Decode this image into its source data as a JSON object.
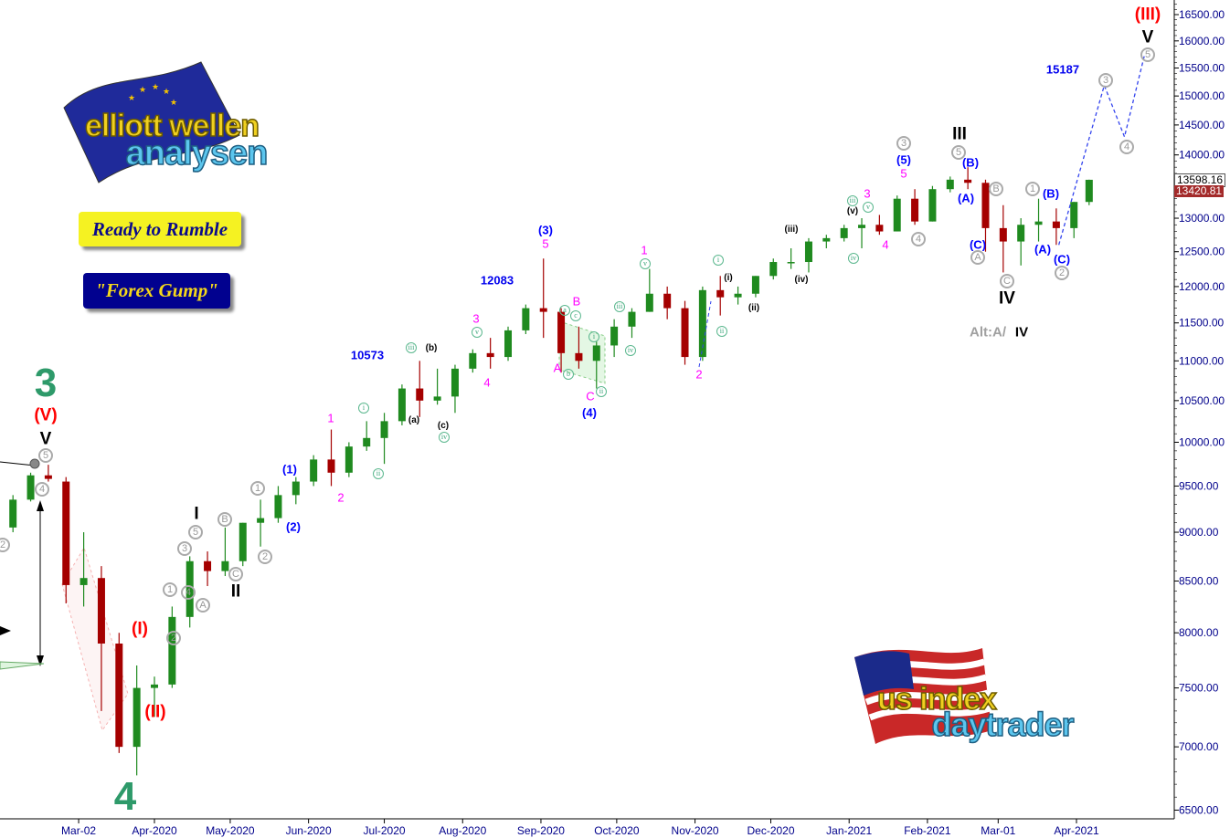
{
  "colors": {
    "up": "#1f8a1f",
    "down": "#a50000",
    "projection": "#3344ee",
    "axis": "#000000",
    "tick_text": "#00008b"
  },
  "buttons": {
    "ready_to_rumble": "Ready to Rumble",
    "forex_gump": "\"Forex Gump\""
  },
  "logos": {
    "top_left": {
      "line1": "elliott wellen",
      "line2": "analysen",
      "icon": "eu-flag-icon"
    },
    "bottom_right": {
      "line1": "us index",
      "line2": "daytrader",
      "icon": "us-flag-icon"
    }
  },
  "price_tags": {
    "last": "13598.16",
    "previous": "13420.81"
  },
  "chart_data": {
    "type": "candlestick",
    "y_scale": "log",
    "ylim": [
      6450,
      16700
    ],
    "grid": false,
    "y_ticks": [
      "16500.00",
      "16000.00",
      "15500.00",
      "15000.00",
      "14500.00",
      "14000.00",
      "13000.00",
      "12500.00",
      "12000.00",
      "11500.00",
      "11000.00",
      "10500.00",
      "10000.00",
      "9500.00",
      "9000.00",
      "8500.00",
      "8000.00",
      "7500.00",
      "7000.00",
      "6500.00"
    ],
    "x_ticks": [
      {
        "label": "Mar-02",
        "date": "2020-03-02"
      },
      {
        "label": "Apr-2020",
        "date": "2020-04-01"
      },
      {
        "label": "May-2020",
        "date": "2020-05-01"
      },
      {
        "label": "Jun-2020",
        "date": "2020-06-01"
      },
      {
        "label": "Jul-2020",
        "date": "2020-07-01"
      },
      {
        "label": "Aug-2020",
        "date": "2020-08-01"
      },
      {
        "label": "Sep-2020",
        "date": "2020-09-01"
      },
      {
        "label": "Oct-2020",
        "date": "2020-10-01"
      },
      {
        "label": "Nov-2020",
        "date": "2020-11-01"
      },
      {
        "label": "Dec-2020",
        "date": "2020-12-01"
      },
      {
        "label": "Jan-2021",
        "date": "2021-01-01"
      },
      {
        "label": "Feb-2021",
        "date": "2021-02-01"
      },
      {
        "label": "Mar-01",
        "date": "2021-03-01"
      },
      {
        "label": "Apr-2021",
        "date": "2021-04-01"
      }
    ],
    "ohlc_columns": [
      "date",
      "open",
      "high",
      "low",
      "close"
    ],
    "ohlc": [
      [
        "2020-02-05",
        9050,
        9400,
        9000,
        9350
      ],
      [
        "2020-02-12",
        9350,
        9650,
        9330,
        9620
      ],
      [
        "2020-02-19",
        9620,
        9740,
        9550,
        9580
      ],
      [
        "2020-02-26",
        9550,
        9600,
        8280,
        8460
      ],
      [
        "2020-03-04",
        8460,
        9000,
        8250,
        8530
      ],
      [
        "2020-03-11",
        8530,
        8650,
        7300,
        7900
      ],
      [
        "2020-03-18",
        7900,
        8000,
        6950,
        7000
      ],
      [
        "2020-03-25",
        7000,
        7700,
        6770,
        7500
      ],
      [
        "2020-04-01",
        7500,
        7600,
        7250,
        7530
      ],
      [
        "2020-04-08",
        7530,
        8250,
        7500,
        8150
      ],
      [
        "2020-04-15",
        8150,
        8750,
        8050,
        8700
      ],
      [
        "2020-04-22",
        8700,
        8800,
        8450,
        8600
      ],
      [
        "2020-04-29",
        8600,
        9050,
        8550,
        8700
      ],
      [
        "2020-05-06",
        8700,
        9100,
        8650,
        9100
      ],
      [
        "2020-05-13",
        9100,
        9350,
        8850,
        9150
      ],
      [
        "2020-05-20",
        9150,
        9500,
        9100,
        9400
      ],
      [
        "2020-05-27",
        9400,
        9600,
        9300,
        9550
      ],
      [
        "2020-06-03",
        9550,
        9850,
        9500,
        9800
      ],
      [
        "2020-06-10",
        9800,
        10150,
        9500,
        9650
      ],
      [
        "2020-06-17",
        9650,
        10000,
        9600,
        9950
      ],
      [
        "2020-06-24",
        9950,
        10250,
        9900,
        10050
      ],
      [
        "2020-07-01",
        10050,
        10350,
        9750,
        10250
      ],
      [
        "2020-07-08",
        10250,
        10700,
        10200,
        10650
      ],
      [
        "2020-07-15",
        10650,
        11000,
        10300,
        10500
      ],
      [
        "2020-07-22",
        10500,
        10900,
        10450,
        10550
      ],
      [
        "2020-07-29",
        10550,
        10950,
        10350,
        10900
      ],
      [
        "2020-08-05",
        10900,
        11150,
        10850,
        11100
      ],
      [
        "2020-08-12",
        11100,
        11300,
        10900,
        11050
      ],
      [
        "2020-08-19",
        11050,
        11450,
        11000,
        11400
      ],
      [
        "2020-08-26",
        11400,
        11750,
        11350,
        11700
      ],
      [
        "2020-09-02",
        11700,
        12400,
        11300,
        11650
      ],
      [
        "2020-09-09",
        11650,
        11700,
        10850,
        11100
      ],
      [
        "2020-09-16",
        11100,
        11450,
        10900,
        11000
      ],
      [
        "2020-09-23",
        11000,
        11250,
        10650,
        11200
      ],
      [
        "2020-09-30",
        11200,
        11550,
        11050,
        11450
      ],
      [
        "2020-10-07",
        11450,
        11700,
        11300,
        11650
      ],
      [
        "2020-10-14",
        11650,
        12250,
        11650,
        11900
      ],
      [
        "2020-10-21",
        11900,
        12000,
        11550,
        11700
      ],
      [
        "2020-10-28",
        11700,
        11800,
        10950,
        11050
      ],
      [
        "2020-11-04",
        11050,
        12000,
        11000,
        11950
      ],
      [
        "2020-11-11",
        11950,
        12150,
        11600,
        11850
      ],
      [
        "2020-11-18",
        11850,
        12000,
        11750,
        11900
      ],
      [
        "2020-11-25",
        11900,
        12150,
        11850,
        12150
      ],
      [
        "2020-12-02",
        12150,
        12400,
        12100,
        12350
      ],
      [
        "2020-12-09",
        12350,
        12550,
        12250,
        12350
      ],
      [
        "2020-12-16",
        12350,
        12700,
        12200,
        12650
      ],
      [
        "2020-12-23",
        12650,
        12750,
        12550,
        12700
      ],
      [
        "2020-12-30",
        12700,
        12900,
        12650,
        12850
      ],
      [
        "2021-01-06",
        12850,
        13000,
        12550,
        12900
      ],
      [
        "2021-01-13",
        12900,
        13050,
        12750,
        12800
      ],
      [
        "2021-01-20",
        12800,
        13350,
        12800,
        13300
      ],
      [
        "2021-01-27",
        13300,
        13450,
        12900,
        12950
      ],
      [
        "2021-02-03",
        12950,
        13500,
        12950,
        13450
      ],
      [
        "2021-02-10",
        13450,
        13650,
        13400,
        13600
      ],
      [
        "2021-02-17",
        13600,
        13800,
        13450,
        13550
      ],
      [
        "2021-02-24",
        13550,
        13600,
        12500,
        12850
      ],
      [
        "2021-03-03",
        12850,
        13200,
        12200,
        12650
      ],
      [
        "2021-03-10",
        12650,
        13000,
        12300,
        12900
      ],
      [
        "2021-03-17",
        12900,
        13300,
        12650,
        12950
      ],
      [
        "2021-03-24",
        12950,
        13150,
        12600,
        12850
      ],
      [
        "2021-03-31",
        12850,
        13250,
        12700,
        13250
      ],
      [
        "2021-04-06",
        13250,
        13600,
        13200,
        13598.16
      ]
    ],
    "projection": [
      [
        "2021-03-25",
        12600
      ],
      [
        "2021-04-12",
        15187
      ],
      [
        "2021-04-20",
        14300
      ],
      [
        "2021-04-28",
        15750
      ]
    ],
    "annotations": [
      "3",
      "(V)",
      "V",
      "5",
      "4",
      "2",
      "I",
      "5",
      "3",
      "1",
      "4",
      "A",
      "2",
      "B",
      "C",
      "II",
      "1",
      "2",
      "(I)",
      "(II)",
      "4",
      "(1)",
      "(2)",
      "1",
      "2",
      "i",
      "ii",
      "10573",
      "iii",
      "(a)",
      "(b)",
      "(c)",
      "iv",
      "3",
      "v",
      "4",
      "12083",
      "(3)",
      "5",
      "A",
      "a",
      "b",
      "B",
      "c",
      "C",
      "ii",
      "(4)",
      "i",
      "iii",
      "iv",
      "1",
      "v",
      "2",
      "i",
      "ii",
      "(i)",
      "(ii)",
      "(iii)",
      "(iv)",
      "(v)",
      "iii",
      "iv",
      "3",
      "v",
      "4",
      "3",
      "(5)",
      "5",
      "4",
      "III",
      "5",
      "(B)",
      "(A)",
      "B",
      "(C)",
      "A",
      "C",
      "IV",
      "1",
      "(B)",
      "(A)",
      "(C)",
      "2",
      "15187",
      "3",
      "4",
      "5",
      "V",
      "(III)",
      "Alt:A/",
      "IV"
    ]
  }
}
